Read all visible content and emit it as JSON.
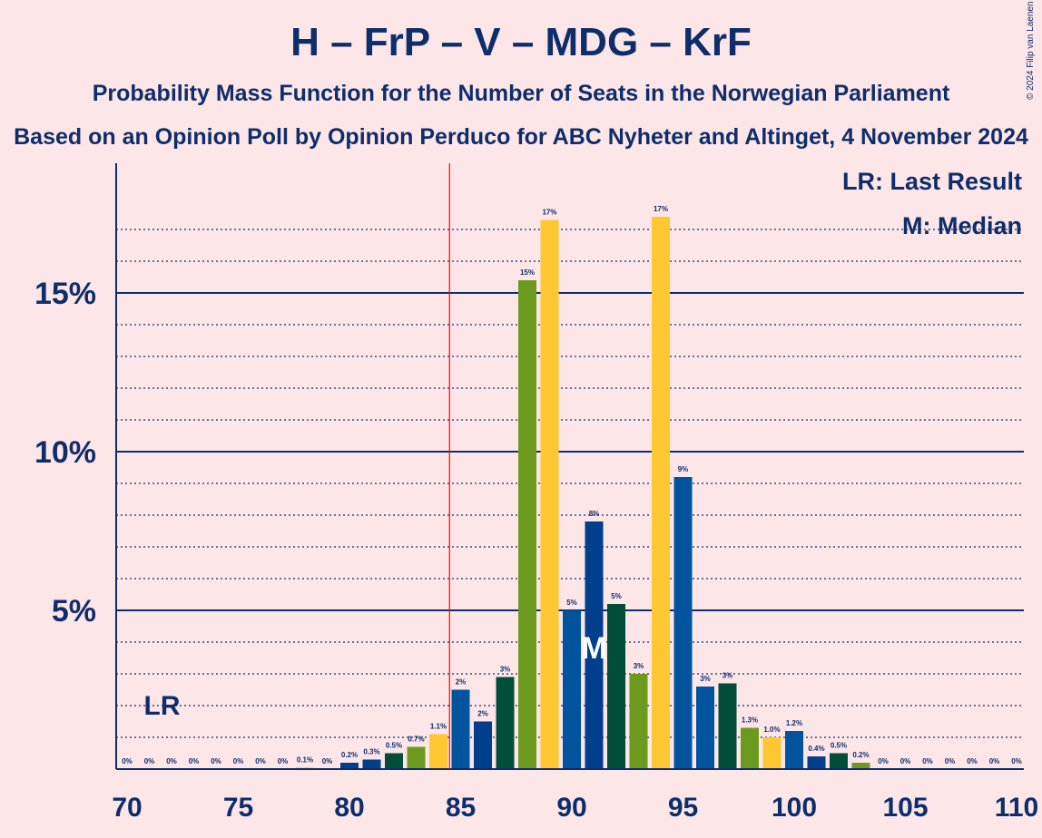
{
  "title": "H – FrP – V – MDG – KrF",
  "subtitle": "Probability Mass Function for the Number of Seats in the Norwegian Parliament",
  "source": "Based on an Opinion Poll by Opinion Perduco for ABC Nyheter and Altinget, 4 November 2024",
  "copyright": "© 2024 Filip van Laenen",
  "colors": {
    "background": "#FDE6E8",
    "text": "#0E2D6B",
    "h_blue": "#00549E",
    "dark_blue": "#003F8C",
    "green": "#6B9A1E",
    "dark_green": "#004E3A",
    "yellow": "#FFC832",
    "last_result_line": "#FF0000"
  },
  "chart_data": {
    "type": "bar",
    "x": [
      70,
      71,
      72,
      73,
      74,
      75,
      76,
      77,
      78,
      79,
      80,
      81,
      82,
      83,
      84,
      85,
      86,
      87,
      88,
      89,
      90,
      91,
      92,
      93,
      94,
      95,
      96,
      97,
      98,
      99,
      100,
      101,
      102,
      103,
      104,
      105,
      106,
      107,
      108,
      109,
      110
    ],
    "values": [
      0,
      0,
      0,
      0,
      0,
      0,
      0,
      0,
      0.05,
      0,
      0.2,
      0.3,
      0.5,
      0.7,
      1.1,
      2.5,
      1.5,
      2.9,
      15.4,
      17.3,
      5.0,
      7.8,
      5.2,
      3.0,
      17.4,
      9.2,
      2.6,
      2.7,
      1.3,
      1.0,
      1.2,
      0.4,
      0.5,
      0.2,
      0,
      0,
      0,
      0,
      0,
      0,
      0
    ],
    "value_labels": [
      "0%",
      "0%",
      "0%",
      "0%",
      "0%",
      "0%",
      "0%",
      "0%",
      "0.1%",
      "0%",
      "0.2%",
      "0.3%",
      "0.5%",
      "0.7%",
      "1.1%",
      "2%",
      "2%",
      "3%",
      "15%",
      "17%",
      "5%",
      "8%",
      "5%",
      "3%",
      "17%",
      "9%",
      "3%",
      "3%",
      "1.3%",
      "1.0%",
      "1.2%",
      "0.4%",
      "0.5%",
      "0.2%",
      "0%",
      "0%",
      "0%",
      "0%",
      "0%",
      "0%",
      "0%"
    ],
    "bar_colors": [
      "#00549E",
      "#004E3A",
      "#6B9A1E",
      "#FFC832",
      "#00549E",
      "#003F8C",
      "#004E3A",
      "#6B9A1E",
      "#FFC832",
      "#00549E",
      "#003F8C",
      "#003F8C",
      "#004E3A",
      "#6B9A1E",
      "#FFC832",
      "#00549E",
      "#003F8C",
      "#004E3A",
      "#6B9A1E",
      "#FFC832",
      "#00549E",
      "#003F8C",
      "#004E3A",
      "#6B9A1E",
      "#FFC832",
      "#00549E",
      "#00549E",
      "#004E3A",
      "#6B9A1E",
      "#FFC832",
      "#00549E",
      "#003F8C",
      "#004E3A",
      "#6B9A1E",
      "#FFC832",
      "#00549E",
      "#003F8C",
      "#004E3A",
      "#6B9A1E",
      "#FFC832",
      "#00549E"
    ],
    "xticks": [
      70,
      75,
      80,
      85,
      90,
      95,
      100,
      105,
      110
    ],
    "xtick_labels": [
      "70",
      "75",
      "80",
      "85",
      "90",
      "95",
      "100",
      "105",
      "110"
    ],
    "yticks": [
      5,
      10,
      15
    ],
    "ytick_labels": [
      "5%",
      "10%",
      "15%"
    ],
    "ylim": [
      0,
      19
    ],
    "xlim": [
      70,
      110
    ],
    "grid": "dotted minor lines every 1%, solid major lines every 5%",
    "last_result": 84.5,
    "last_result_label": "LR",
    "last_result_marker_x": 71,
    "median": 91,
    "median_label": "M",
    "legend": [
      "LR: Last Result",
      "M: Median"
    ],
    "legend_position": "top-right"
  }
}
